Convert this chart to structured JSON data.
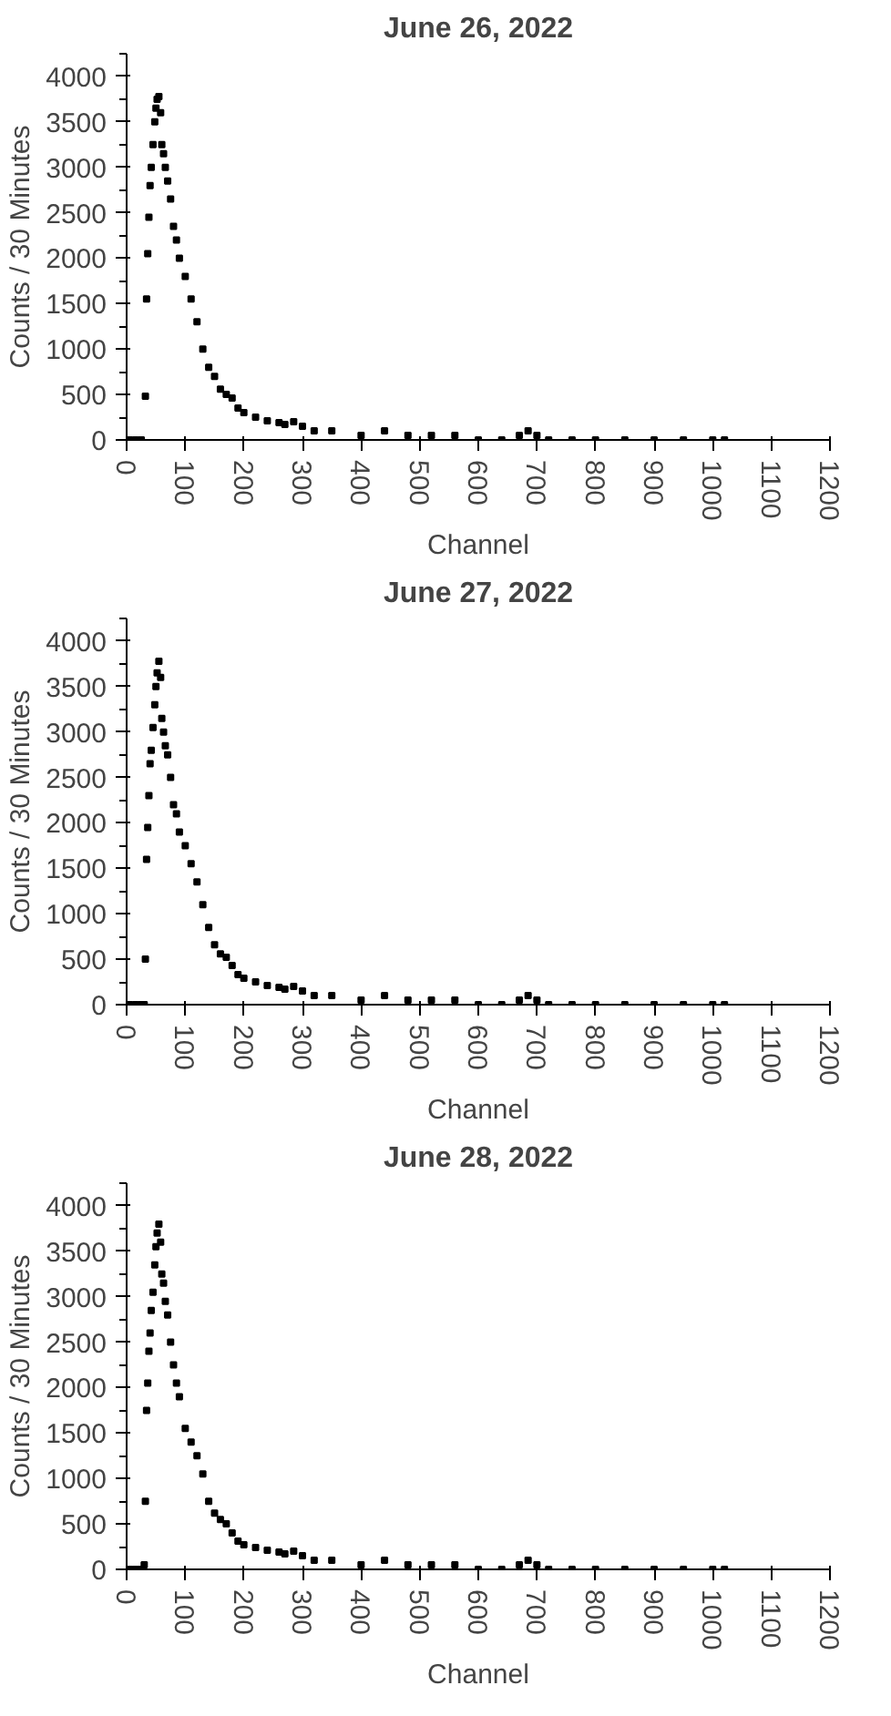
{
  "chart_data": [
    {
      "type": "scatter",
      "title": "June 26, 2022",
      "xlabel": "Channel",
      "ylabel": "Counts / 30 Minutes",
      "marker": "square",
      "xlim": [
        0,
        1200
      ],
      "ylim": [
        0,
        4250
      ],
      "xticks": [
        0,
        100,
        200,
        300,
        400,
        500,
        600,
        700,
        800,
        900,
        1000,
        1100,
        1200
      ],
      "yticks": [
        0,
        500,
        1000,
        1500,
        2000,
        2500,
        3000,
        3500,
        4000
      ],
      "series": [
        {
          "color": "#000000",
          "x": [
            5,
            15,
            25,
            32,
            34,
            36,
            38,
            40,
            42,
            45,
            48,
            50,
            52,
            55,
            58,
            60,
            63,
            66,
            70,
            75,
            80,
            85,
            90,
            100,
            110,
            120,
            130,
            140,
            150,
            160,
            170,
            180,
            190,
            200,
            220,
            240,
            260,
            270,
            285,
            300,
            320,
            350,
            400,
            440,
            480,
            520,
            560,
            600,
            640,
            670,
            685,
            700,
            720,
            760,
            800,
            850,
            900,
            950,
            1000,
            1020
          ],
          "values": [
            0,
            0,
            0,
            480,
            1550,
            2050,
            2450,
            2800,
            3000,
            3250,
            3500,
            3650,
            3750,
            3780,
            3600,
            3250,
            3150,
            3000,
            2850,
            2650,
            2350,
            2200,
            2000,
            1800,
            1550,
            1300,
            1000,
            800,
            700,
            560,
            500,
            460,
            350,
            300,
            250,
            210,
            190,
            170,
            200,
            150,
            100,
            100,
            50,
            100,
            50,
            50,
            50,
            0,
            0,
            50,
            100,
            50,
            0,
            0,
            0,
            0,
            0,
            0,
            0,
            0
          ]
        }
      ]
    },
    {
      "type": "scatter",
      "title": "June 27, 2022",
      "xlabel": "Channel",
      "ylabel": "Counts / 30 Minutes",
      "marker": "square",
      "xlim": [
        0,
        1200
      ],
      "ylim": [
        0,
        4250
      ],
      "xticks": [
        0,
        100,
        200,
        300,
        400,
        500,
        600,
        700,
        800,
        900,
        1000,
        1100,
        1200
      ],
      "yticks": [
        0,
        500,
        1000,
        1500,
        2000,
        2500,
        3000,
        3500,
        4000
      ],
      "series": [
        {
          "color": "#000000",
          "x": [
            5,
            15,
            25,
            30,
            32,
            34,
            36,
            38,
            40,
            42,
            45,
            48,
            50,
            52,
            55,
            58,
            60,
            63,
            66,
            70,
            75,
            80,
            85,
            90,
            100,
            110,
            120,
            130,
            140,
            150,
            160,
            170,
            180,
            190,
            200,
            220,
            240,
            260,
            270,
            285,
            300,
            320,
            350,
            400,
            440,
            480,
            520,
            560,
            600,
            640,
            670,
            685,
            700,
            720,
            760,
            800,
            850,
            900,
            950,
            1000,
            1020
          ],
          "values": [
            0,
            0,
            0,
            0,
            500,
            1600,
            1950,
            2300,
            2650,
            2800,
            3050,
            3300,
            3500,
            3650,
            3780,
            3600,
            3150,
            3000,
            2850,
            2750,
            2500,
            2200,
            2100,
            1900,
            1750,
            1550,
            1350,
            1100,
            850,
            660,
            560,
            520,
            430,
            330,
            290,
            250,
            210,
            190,
            170,
            200,
            150,
            100,
            100,
            50,
            100,
            50,
            50,
            50,
            0,
            0,
            50,
            100,
            50,
            0,
            0,
            0,
            0,
            0,
            0,
            0,
            0
          ]
        }
      ]
    },
    {
      "type": "scatter",
      "title": "June 28, 2022",
      "xlabel": "Channel",
      "ylabel": "Counts / 30 Minutes",
      "marker": "square",
      "xlim": [
        0,
        1200
      ],
      "ylim": [
        0,
        4250
      ],
      "xticks": [
        0,
        100,
        200,
        300,
        400,
        500,
        600,
        700,
        800,
        900,
        1000,
        1100,
        1200
      ],
      "yticks": [
        0,
        500,
        1000,
        1500,
        2000,
        2500,
        3000,
        3500,
        4000
      ],
      "series": [
        {
          "color": "#000000",
          "x": [
            5,
            15,
            25,
            30,
            32,
            34,
            36,
            38,
            40,
            42,
            45,
            48,
            50,
            52,
            55,
            58,
            60,
            63,
            66,
            70,
            75,
            80,
            85,
            90,
            100,
            110,
            120,
            130,
            140,
            150,
            160,
            170,
            180,
            190,
            200,
            220,
            240,
            260,
            270,
            285,
            300,
            320,
            350,
            400,
            440,
            480,
            520,
            560,
            600,
            640,
            670,
            685,
            700,
            720,
            760,
            800,
            850,
            900,
            950,
            1000,
            1020
          ],
          "values": [
            0,
            0,
            0,
            50,
            750,
            1750,
            2050,
            2400,
            2600,
            2850,
            3050,
            3350,
            3550,
            3700,
            3800,
            3600,
            3250,
            3150,
            2950,
            2800,
            2500,
            2250,
            2050,
            1900,
            1550,
            1400,
            1250,
            1050,
            750,
            620,
            550,
            500,
            400,
            310,
            270,
            240,
            210,
            190,
            170,
            200,
            150,
            100,
            100,
            50,
            100,
            50,
            50,
            50,
            0,
            0,
            50,
            100,
            50,
            0,
            0,
            0,
            0,
            0,
            0,
            0,
            0
          ]
        }
      ]
    }
  ]
}
